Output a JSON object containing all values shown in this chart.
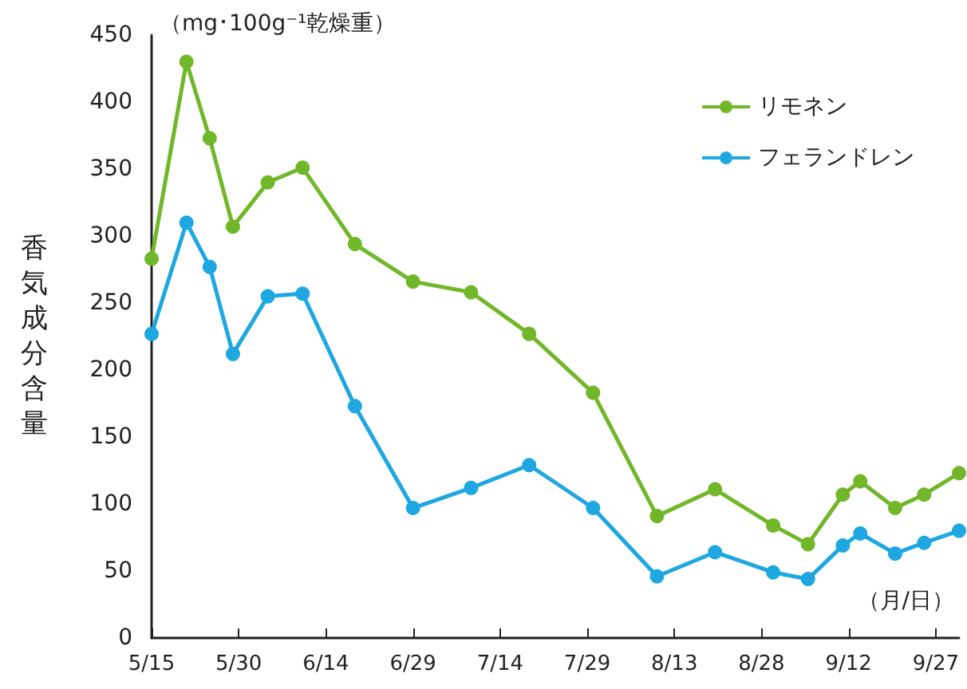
{
  "chart_data": {
    "type": "line",
    "ylabel": "香気成分含量",
    "xlabel": "（月/日）",
    "annotations": [
      "（mg･100g⁻¹乾燥重）"
    ],
    "xlim": [
      "--05-15",
      "--10-01"
    ],
    "xticks": [
      {
        "value": "--05-15",
        "label": "5/15"
      },
      {
        "value": "--05-30",
        "label": "5/30"
      },
      {
        "value": "--06-14",
        "label": "6/14"
      },
      {
        "value": "--06-29",
        "label": "6/29"
      },
      {
        "value": "--07-14",
        "label": "7/14"
      },
      {
        "value": "--07-29",
        "label": "7/29"
      },
      {
        "value": "--08-13",
        "label": "8/13"
      },
      {
        "value": "--08-28",
        "label": "8/28"
      },
      {
        "value": "--09-12",
        "label": "9/12"
      },
      {
        "value": "--09-27",
        "label": "9/27"
      }
    ],
    "ylim": [
      0,
      450
    ],
    "yticks": [
      0,
      50,
      100,
      150,
      200,
      250,
      300,
      350,
      400,
      450
    ],
    "x": [
      "--05-15",
      "--05-21",
      "--05-25",
      "--05-29",
      "--06-04",
      "--06-10",
      "--06-19",
      "--06-29",
      "--07-09",
      "--07-19",
      "--07-30",
      "--08-10",
      "--08-20",
      "--08-30",
      "--09-05",
      "--09-11",
      "--09-14",
      "--09-20",
      "--09-25",
      "--10-01"
    ],
    "series": [
      {
        "name": "リモネン",
        "color": "#72b72a",
        "values": [
          283,
          430,
          373,
          307,
          340,
          351,
          294,
          266,
          258,
          227,
          183,
          91,
          111,
          84,
          70,
          107,
          117,
          97,
          107,
          123
        ]
      },
      {
        "name": "フェランドレン",
        "color": "#1ea7e1",
        "values": [
          227,
          310,
          277,
          212,
          255,
          257,
          173,
          97,
          112,
          129,
          97,
          46,
          64,
          49,
          44,
          69,
          78,
          63,
          71,
          80
        ]
      }
    ],
    "legend": "top right",
    "grid": false,
    "marker": "circle",
    "line_style": "solid"
  }
}
